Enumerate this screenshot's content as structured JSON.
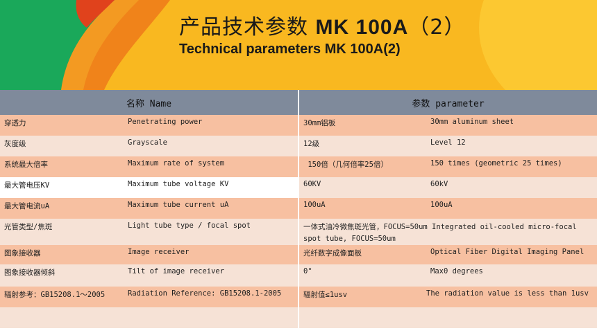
{
  "header": {
    "title_cn_text": "产品技术参数 ",
    "title_cn_model": "MK 100A",
    "title_cn_suffix": "（2）",
    "title_en": "Technical parameters MK 100A(2)"
  },
  "table": {
    "headers": [
      "名称 Name",
      "参数  parameter"
    ],
    "rows": [
      {
        "cn": "穿透力",
        "en": "Penetrating power",
        "value_cn": "30mm铝板",
        "value_en": "30mm aluminum sheet"
      },
      {
        "cn": "灰度级",
        "en": "Grayscale",
        "value_cn": "12级",
        "value_en": "Level 12"
      },
      {
        "cn": "系统最大倍率",
        "en": "Maximum rate of system",
        "value_cn": " 150倍（几何倍率25倍）",
        "value_en": "150 times (geometric 25 times)"
      },
      {
        "cn": "最大管电压KV",
        "en": "Maximum tube voltage KV",
        "value_cn": "60KV",
        "value_en": "60kV"
      },
      {
        "cn": "最大管电流uA",
        "en": "Maximum tube current uA",
        "value_cn": "100uA",
        "value_en": "100uA"
      },
      {
        "cn": "光管类型/焦斑",
        "en": "Light tube type / focal spot",
        "value_cn": "一体式油冷微焦斑光管，FOCUS=50um  Integrated oil-cooled micro-focal spot tube, FOCUS=50um",
        "value_en": ""
      },
      {
        "cn": "图象接收器",
        "en": "Image receiver",
        "value_cn": "光纤数字成像面板",
        "value_en": "Optical Fiber Digital Imaging Panel"
      },
      {
        "cn": "图象接收器倾斜",
        "en": "Tilt of image receiver",
        "value_cn": "0°",
        "value_en": "Max0 degrees"
      },
      {
        "cn": "辐射参考：GB15208.1～2005",
        "en": "Radiation Reference: GB15208.1-2005",
        "value_cn": "辐射值≤1usv",
        "value_en": "The radiation value is less than 1usv"
      }
    ]
  },
  "colors": {
    "header_row": "#7f8a9b",
    "row_peach": "#f7c0a1",
    "row_light": "#f6e2d6",
    "banner_yellow": "#f9b820",
    "banner_orange": "#f0831a",
    "banner_green": "#1aa85a",
    "banner_red": "#e0421c"
  }
}
